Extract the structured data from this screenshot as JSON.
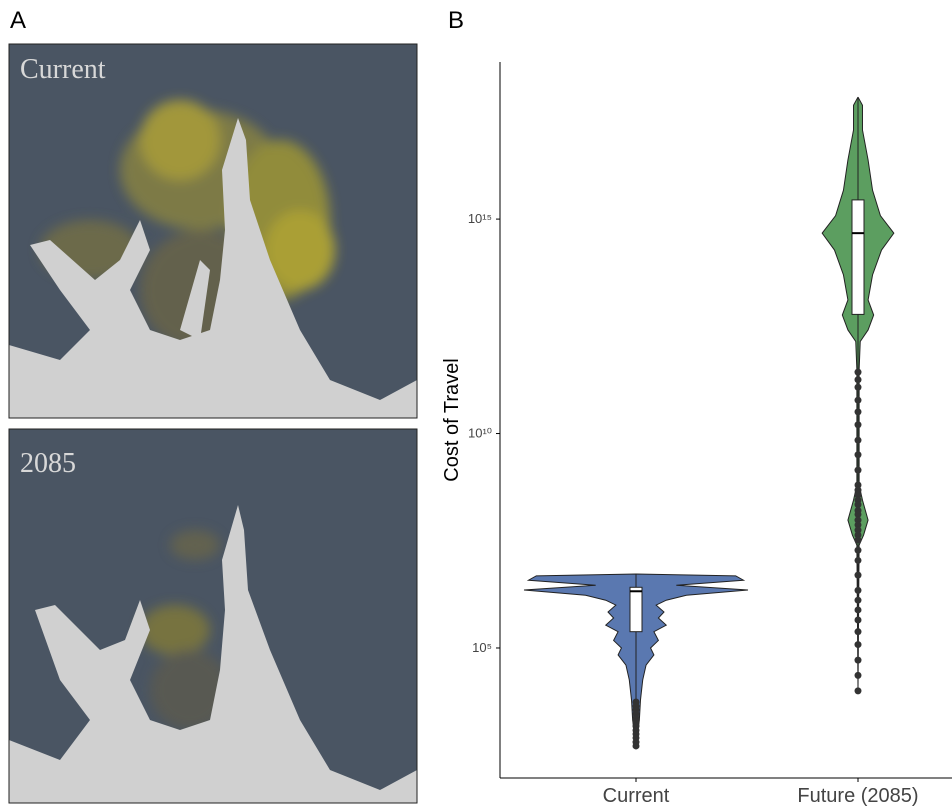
{
  "panel_labels": [
    "A",
    "B"
  ],
  "maps": [
    {
      "label": "Current"
    },
    {
      "label": "2085"
    }
  ],
  "chart_data": {
    "type": "violin",
    "ylabel": "Cost of Travel",
    "log_scale": true,
    "ylim": [
      93,
      4.6e+18
    ],
    "yticks": [
      {
        "value": 100000,
        "label": "10⁵"
      },
      {
        "value": 10000000000,
        "label": "10¹⁰"
      },
      {
        "value": 1000000000000000,
        "label": "10¹⁵"
      }
    ],
    "categories": [
      "Current",
      "Future (2085)"
    ],
    "series": [
      {
        "name": "Current",
        "color": "#5a78b0",
        "violin": {
          "values": [
            5300000,
            4800000,
            3800000,
            2900000,
            2250000,
            1700000,
            1300000,
            1000000,
            690000,
            500000,
            340000,
            240000,
            150000,
            100000,
            69000,
            40000,
            18000,
            6100,
            2100,
            470
          ],
          "density": [
            0,
            0.89,
            0.96,
            0.36,
            1.0,
            0.45,
            0.27,
            0.18,
            0.25,
            0.2,
            0.27,
            0.16,
            0.2,
            0.13,
            0.16,
            0.09,
            0.06,
            0.04,
            0.03,
            0
          ]
        },
        "box": {
          "whisker_low": 7200,
          "q1": 240000,
          "median": 2100000,
          "q3": 2600000,
          "whisker_high": 5000000
        },
        "outliers": [
          5500,
          4400,
          3600,
          2900,
          2300,
          1900,
          1500,
          1200,
          990,
          800,
          640,
          520
        ]
      },
      {
        "name": "Future (2085)",
        "color": "#5c9e60",
        "violin": {
          "values": [
            7e+17,
            4.5e+17,
            1.2e+17,
            2.4e+16,
            4700000000000000.0,
            1200000000000000.0,
            470000000000000.0,
            190000000000000.0,
            50000000000000.0,
            13000000000000.0,
            5800000000000.0,
            2600000000000.0,
            1400000000000.0,
            300000000000.0,
            630000000,
            280000000,
            96000000,
            43000000,
            25000000,
            10000
          ],
          "density": [
            0,
            0.04,
            0.04,
            0.09,
            0.13,
            0.2,
            0.32,
            0.21,
            0.13,
            0.09,
            0.14,
            0.09,
            0.02,
            0.01,
            0.01,
            0.04,
            0.09,
            0.05,
            0.01,
            0
          ]
        },
        "box": {
          "whisker_low": 300000000000,
          "q1": 6000000000000,
          "median": 470000000000000,
          "q3": 2800000000000000,
          "whisker_high": 7e+17
        },
        "outliers": [
          270000000000,
          180000000000,
          120000000000,
          60000000000,
          32000000000,
          16000000000,
          7000000000,
          3200000000,
          1400000000,
          630000000,
          480000000,
          370000000,
          280000000,
          220000000,
          160000000,
          130000000,
          96000000,
          74000000,
          56000000,
          43000000,
          33000000,
          19000000,
          11000000,
          5000000,
          2200000,
          1300000,
          770000,
          450000,
          240000,
          120000,
          52000,
          23000,
          10000
        ]
      }
    ]
  }
}
